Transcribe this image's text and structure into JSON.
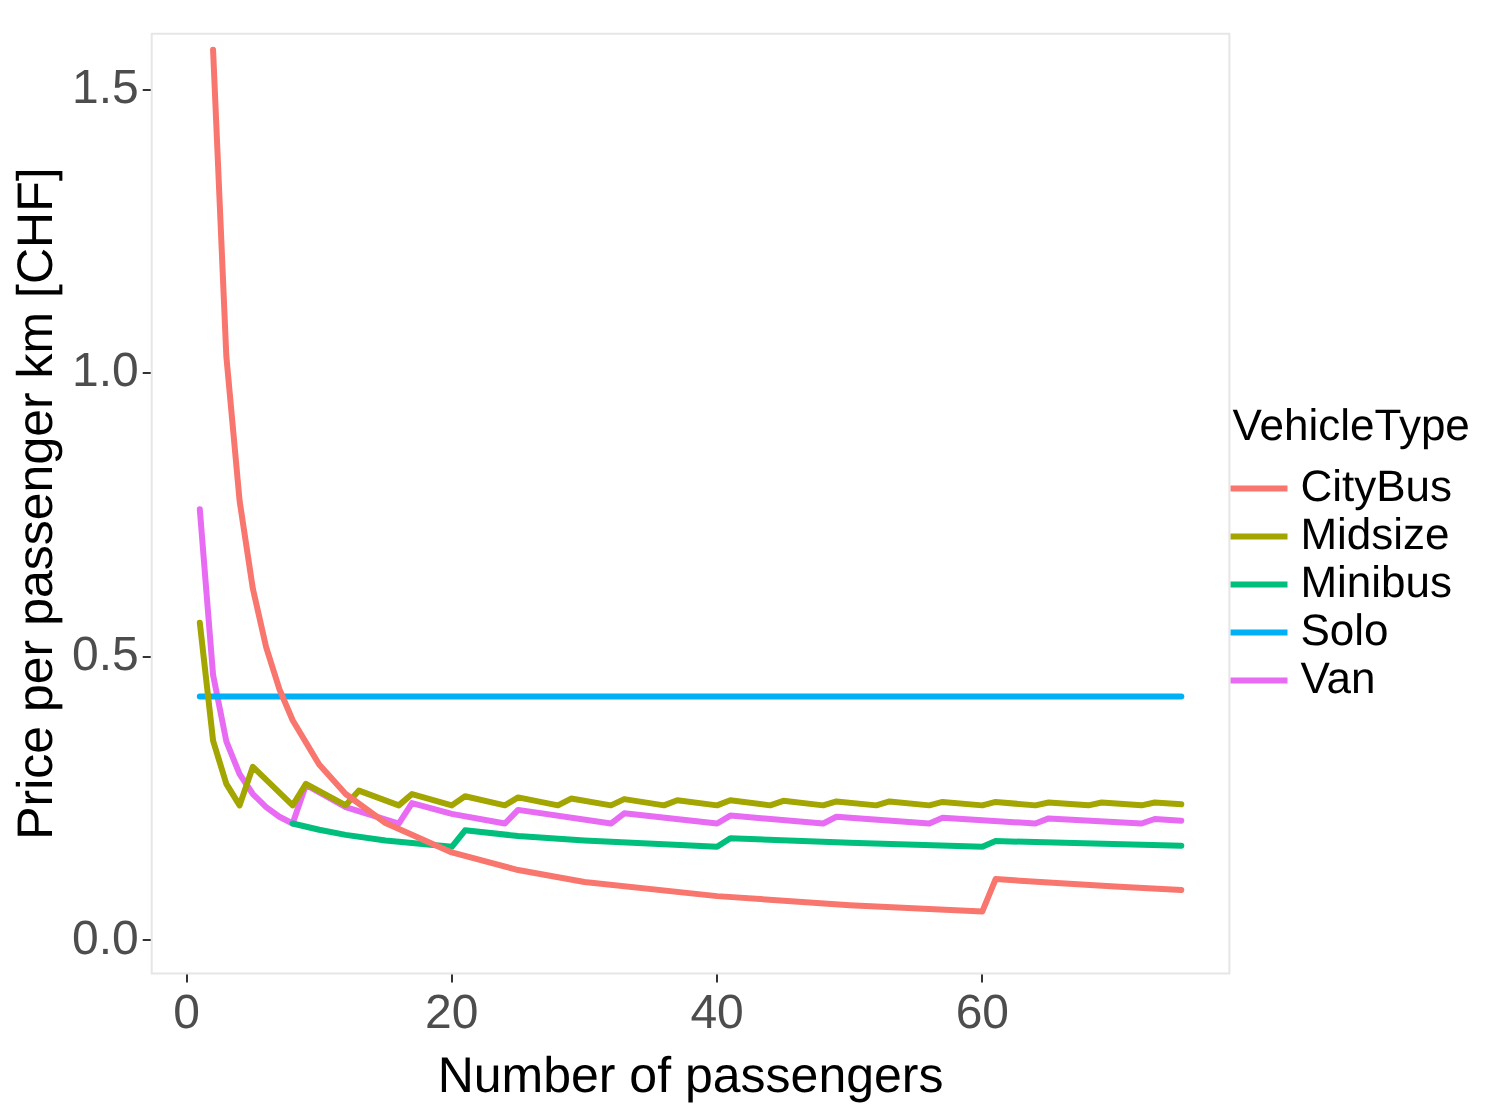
{
  "chart_data": {
    "type": "line",
    "xlabel": "Number of passengers",
    "ylabel": "Price per passenger km [CHF]",
    "legend_title": "VehicleType",
    "xlim": [
      -2.7,
      78.7
    ],
    "ylim": [
      -0.06,
      1.6
    ],
    "xticks": [
      0,
      20,
      40,
      60
    ],
    "yticks": [
      {
        "value": 0,
        "label": "0.0"
      },
      {
        "value": 0.5,
        "label": "0.5"
      },
      {
        "value": 1,
        "label": "1.0"
      },
      {
        "value": 1.5,
        "label": "1.5"
      }
    ],
    "grid": false,
    "legend": "right",
    "marker": "none",
    "line_style": "solid",
    "series": [
      {
        "name": "CityBus",
        "color": "#f8766d",
        "x": [
          2,
          3,
          4,
          5,
          6,
          7,
          8,
          10,
          12,
          15,
          20,
          25,
          30,
          40,
          50,
          60,
          61,
          65,
          70,
          75
        ],
        "values": [
          1.57,
          1.03,
          0.775,
          0.62,
          0.517,
          0.443,
          0.388,
          0.31,
          0.258,
          0.207,
          0.155,
          0.124,
          0.103,
          0.078,
          0.062,
          0.051,
          0.108,
          0.102,
          0.095,
          0.089
        ]
      },
      {
        "name": "Midsize",
        "color": "#a3a500",
        "x": [
          1,
          2,
          3,
          4,
          5,
          8,
          9,
          12,
          13,
          16,
          17,
          20,
          21,
          24,
          25,
          28,
          29,
          32,
          33,
          36,
          37,
          40,
          41,
          44,
          45,
          48,
          49,
          52,
          53,
          56,
          57,
          60,
          61,
          64,
          65,
          68,
          69,
          72,
          73,
          75
        ],
        "values": [
          0.56,
          0.352,
          0.276,
          0.238,
          0.306,
          0.238,
          0.276,
          0.238,
          0.264,
          0.238,
          0.258,
          0.238,
          0.254,
          0.238,
          0.252,
          0.238,
          0.25,
          0.238,
          0.249,
          0.238,
          0.247,
          0.238,
          0.247,
          0.238,
          0.246,
          0.238,
          0.245,
          0.238,
          0.245,
          0.238,
          0.244,
          0.238,
          0.244,
          0.238,
          0.243,
          0.238,
          0.243,
          0.238,
          0.243,
          0.24
        ]
      },
      {
        "name": "Minibus",
        "color": "#00bf7d",
        "x": [
          8,
          10,
          12,
          15,
          20,
          21,
          25,
          30,
          40,
          41,
          50,
          60,
          61,
          75
        ],
        "values": [
          0.206,
          0.195,
          0.186,
          0.176,
          0.165,
          0.194,
          0.184,
          0.176,
          0.165,
          0.18,
          0.172,
          0.165,
          0.175,
          0.167
        ]
      },
      {
        "name": "Solo",
        "color": "#00b0f6",
        "x": [
          1,
          75
        ],
        "values": [
          0.43,
          0.43
        ]
      },
      {
        "name": "Van",
        "color": "#e76bf3",
        "x": [
          1,
          2,
          3,
          4,
          5,
          6,
          7,
          8,
          9,
          12,
          16,
          17,
          20,
          24,
          25,
          32,
          33,
          40,
          41,
          48,
          49,
          56,
          57,
          64,
          65,
          72,
          73,
          75
        ],
        "values": [
          0.76,
          0.468,
          0.351,
          0.293,
          0.258,
          0.235,
          0.218,
          0.206,
          0.274,
          0.235,
          0.206,
          0.242,
          0.223,
          0.206,
          0.23,
          0.206,
          0.224,
          0.206,
          0.22,
          0.206,
          0.218,
          0.206,
          0.216,
          0.206,
          0.215,
          0.206,
          0.214,
          0.211
        ]
      }
    ]
  }
}
